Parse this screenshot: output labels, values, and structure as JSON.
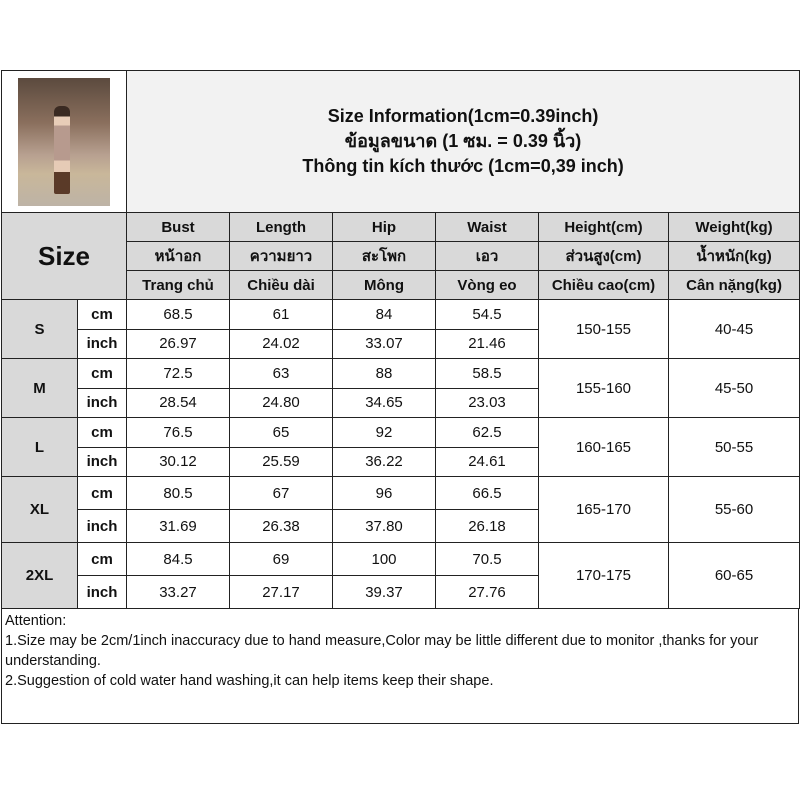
{
  "title": {
    "line1": "Size Information(1cm=0.39inch)",
    "line2": "ข้อมูลขนาด (1 ซม. = 0.39 นิ้ว)",
    "line3": "Thông tin kích thước (1cm=0,39 inch)"
  },
  "size_label": "Size",
  "columns": [
    {
      "en": "Bust",
      "th": "หน้าอก",
      "vi": "Trang chủ"
    },
    {
      "en": "Length",
      "th": "ความยาว",
      "vi": "Chiều dài"
    },
    {
      "en": "Hip",
      "th": "สะโพก",
      "vi": "Mông"
    },
    {
      "en": "Waist",
      "th": "เอว",
      "vi": "Vòng eo"
    },
    {
      "en": "Height(cm)",
      "th": "ส่วนสูง(cm)",
      "vi": "Chiều cao(cm)"
    },
    {
      "en": "Weight(kg)",
      "th": "น้ำหนัก(kg)",
      "vi": "Cân nặng(kg)"
    }
  ],
  "units": {
    "cm": "cm",
    "inch": "inch"
  },
  "rows": [
    {
      "size": "S",
      "cm": [
        "68.5",
        "61",
        "84",
        "54.5"
      ],
      "inch": [
        "26.97",
        "24.02",
        "33.07",
        "21.46"
      ],
      "height": "150-155",
      "weight": "40-45"
    },
    {
      "size": "M",
      "cm": [
        "72.5",
        "63",
        "88",
        "58.5"
      ],
      "inch": [
        "28.54",
        "24.80",
        "34.65",
        "23.03"
      ],
      "height": "155-160",
      "weight": "45-50"
    },
    {
      "size": "L",
      "cm": [
        "76.5",
        "65",
        "92",
        "62.5"
      ],
      "inch": [
        "30.12",
        "25.59",
        "36.22",
        "24.61"
      ],
      "height": "160-165",
      "weight": "50-55"
    },
    {
      "size": "XL",
      "cm": [
        "80.5",
        "67",
        "96",
        "66.5"
      ],
      "inch": [
        "31.69",
        "26.38",
        "37.80",
        "26.18"
      ],
      "height": "165-170",
      "weight": "55-60"
    },
    {
      "size": "2XL",
      "cm": [
        "84.5",
        "69",
        "100",
        "70.5"
      ],
      "inch": [
        "33.27",
        "27.17",
        "39.37",
        "27.76"
      ],
      "height": "170-175",
      "weight": "60-65"
    }
  ],
  "attention": {
    "heading": "Attention:",
    "note1": "1.Size may be 2cm/1inch inaccuracy due to hand measure,Color may be little different due to monitor ,thanks for your understanding.",
    "note2": "2.Suggestion of cold water hand washing,it can help items keep their shape."
  }
}
